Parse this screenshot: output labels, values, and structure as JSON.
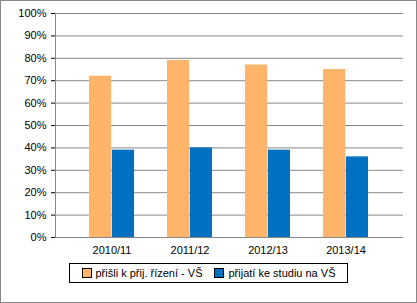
{
  "chart_data": {
    "type": "bar",
    "categories": [
      "2010/11",
      "2011/12",
      "2012/13",
      "2013/14"
    ],
    "series": [
      {
        "name": "přišli k přij. řízení - VŠ",
        "color": "#FFB469",
        "values": [
          72,
          79,
          77,
          75
        ]
      },
      {
        "name": "přijatí ke studiu na VŠ",
        "color": "#0070C0",
        "values": [
          39,
          40,
          39,
          36
        ]
      }
    ],
    "ylim": [
      0,
      100
    ],
    "yticks": [
      {
        "value": 0,
        "label": "0%"
      },
      {
        "value": 10,
        "label": "10%"
      },
      {
        "value": 20,
        "label": "20%"
      },
      {
        "value": 30,
        "label": "30%"
      },
      {
        "value": 40,
        "label": "40%"
      },
      {
        "value": 50,
        "label": "50%"
      },
      {
        "value": 60,
        "label": "60%"
      },
      {
        "value": 70,
        "label": "70%"
      },
      {
        "value": 80,
        "label": "80%"
      },
      {
        "value": 90,
        "label": "90%"
      },
      {
        "value": 100,
        "label": "100%"
      }
    ],
    "grid": true,
    "legend": "bottom"
  }
}
